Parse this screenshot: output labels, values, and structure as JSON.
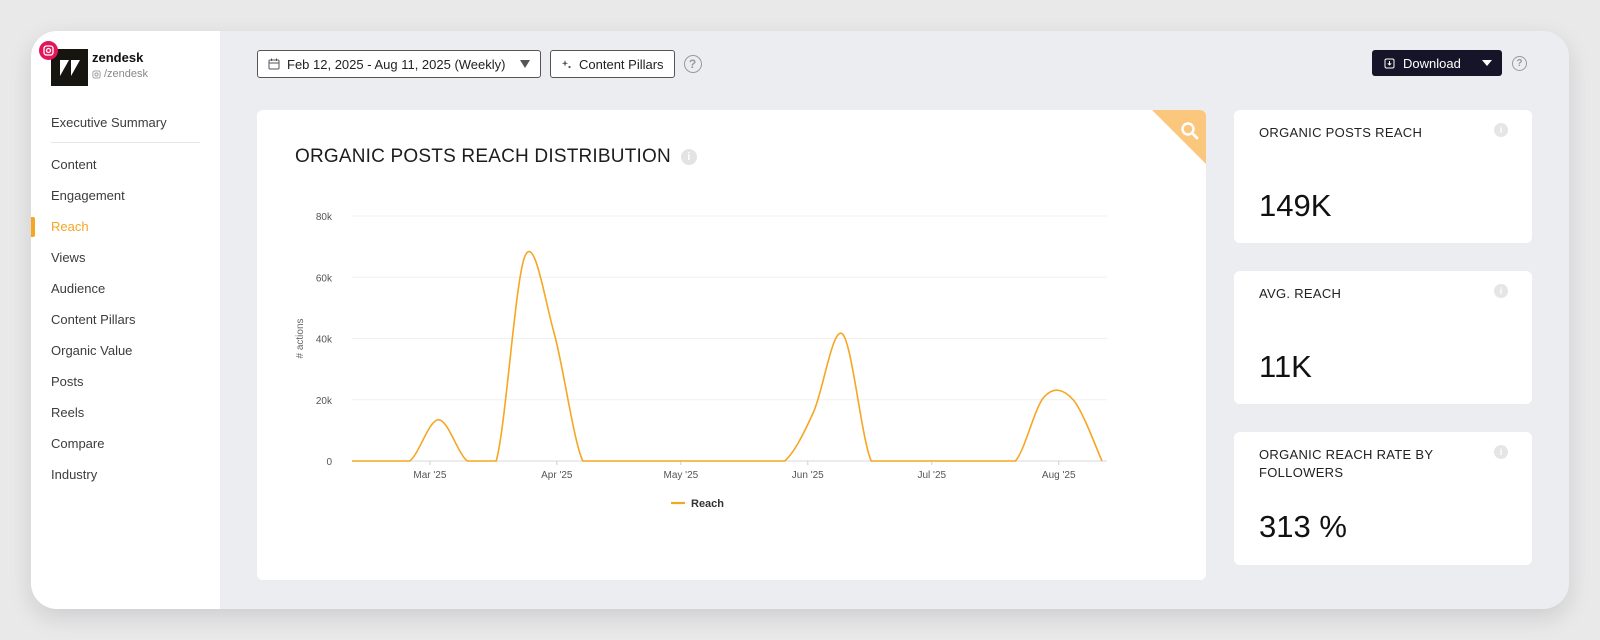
{
  "profile": {
    "name": "zendesk",
    "handle": "/zendesk"
  },
  "nav": {
    "summary": "Executive Summary",
    "items": [
      "Content",
      "Engagement",
      "Reach",
      "Views",
      "Audience",
      "Content Pillars",
      "Organic Value",
      "Posts",
      "Reels",
      "Compare",
      "Industry"
    ],
    "active": "Reach"
  },
  "toolbar": {
    "date_range": "Feb 12, 2025 - Aug 11, 2025 (Weekly)",
    "content_pillars": "Content Pillars",
    "download": "Download"
  },
  "colors": {
    "accent": "#f5a623",
    "dark": "#141528",
    "instagram": "#e4165b"
  },
  "chart": {
    "title": "ORGANIC POSTS REACH DISTRIBUTION"
  },
  "chart_data": {
    "type": "line",
    "title": "ORGANIC POSTS REACH DISTRIBUTION",
    "ylabel": "# actions",
    "xlabel": "",
    "ylim": [
      0,
      80000
    ],
    "yticks": [
      0,
      20000,
      40000,
      60000,
      80000
    ],
    "ytick_labels": [
      "0",
      "20k",
      "40k",
      "60k",
      "80k"
    ],
    "xtick_labels": [
      "Mar '25",
      "Apr '25",
      "May '25",
      "Jun '25",
      "Jul '25",
      "Aug '25"
    ],
    "legend": "bottom-center",
    "series": [
      {
        "name": "Reach",
        "color": "#f5a623",
        "x": [
          "Feb 12",
          "Feb 19",
          "Feb 26",
          "Mar 5",
          "Mar 12",
          "Mar 19",
          "Mar 26",
          "Apr 2",
          "Apr 9",
          "Apr 16",
          "Apr 23",
          "Apr 30",
          "May 7",
          "May 14",
          "May 21",
          "May 28",
          "Jun 4",
          "Jun 11",
          "Jun 18",
          "Jun 25",
          "Jul 2",
          "Jul 9",
          "Jul 16",
          "Jul 23",
          "Jul 30",
          "Aug 6",
          "Aug 11"
        ],
        "values": [
          0,
          0,
          0,
          13500,
          0,
          0,
          67000,
          42000,
          0,
          0,
          0,
          0,
          0,
          0,
          0,
          0,
          16000,
          41500,
          0,
          0,
          0,
          0,
          0,
          0,
          21000,
          20000,
          0
        ]
      }
    ]
  },
  "stats": [
    {
      "label": "ORGANIC POSTS REACH",
      "value": "149K"
    },
    {
      "label": "AVG. REACH",
      "value": "11K"
    },
    {
      "label": "ORGANIC REACH RATE BY FOLLOWERS",
      "value": "313 %"
    }
  ]
}
